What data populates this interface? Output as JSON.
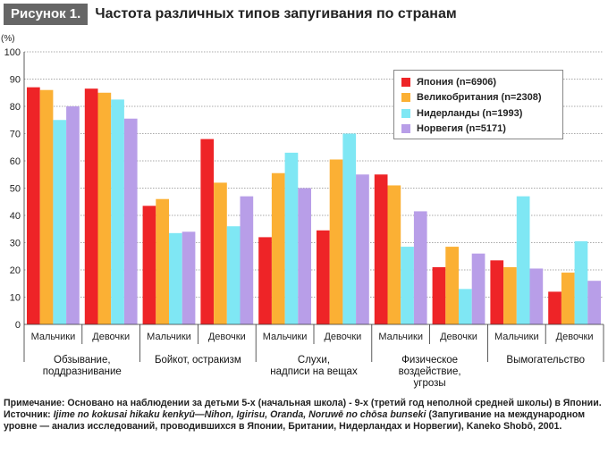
{
  "figure": {
    "label": "Рисунок 1.",
    "title": "Частота различных типов запугивания по странам"
  },
  "chart_data": {
    "type": "bar",
    "unit_label": "(%)",
    "ylim": [
      0,
      100
    ],
    "yticks": [
      0,
      10,
      20,
      30,
      40,
      50,
      60,
      70,
      80,
      90,
      100
    ],
    "grid": true,
    "legend_position": "top-right",
    "groups": [
      {
        "label": "Обзывание, поддразнивание",
        "label_lines": [
          "Обзывание,",
          "поддразнивание"
        ]
      },
      {
        "label": "Бойкот, остракизм",
        "label_lines": [
          "Бойкот, остракизм"
        ]
      },
      {
        "label": "Слухи, надписи на вещах",
        "label_lines": [
          "Слухи,",
          "надписи на вещах"
        ]
      },
      {
        "label": "Физическое воздействие, угрозы",
        "label_lines": [
          "Физическое",
          "воздействие,",
          "угрозы"
        ]
      },
      {
        "label": "Вымогательство",
        "label_lines": [
          "Вымогательство"
        ]
      }
    ],
    "subcategories": [
      "Мальчики",
      "Девочки"
    ],
    "categories": [
      "Мальчики",
      "Девочки",
      "Мальчики",
      "Девочки",
      "Мальчики",
      "Девочки",
      "Мальчики",
      "Девочки",
      "Мальчики",
      "Девочки"
    ],
    "series": [
      {
        "name": "Япония (n=6906)",
        "color": "#ee2427",
        "values": [
          87,
          86.5,
          43.5,
          68,
          32,
          34.5,
          55,
          21,
          23.5,
          12
        ]
      },
      {
        "name": "Великобритания (n=2308)",
        "color": "#fbb034",
        "values": [
          86,
          85,
          46,
          52,
          55.5,
          60.5,
          51,
          28.5,
          21,
          19
        ]
      },
      {
        "name": "Нидерланды (n=1993)",
        "color": "#7fe7f4",
        "values": [
          75,
          82.5,
          33.5,
          36,
          63,
          70,
          28.5,
          13,
          47,
          30.5
        ]
      },
      {
        "name": "Норвегия (n=5171)",
        "color": "#b89ee8",
        "values": [
          80,
          75.5,
          34,
          47,
          50,
          55,
          41.5,
          26,
          20.5,
          16
        ]
      }
    ]
  },
  "notes": {
    "note_prefix": "Примечание: ",
    "note_text": "Основано на наблюдении за детьми 5-х (начальная школа) - 9-х (третий год неполной средней школы) в Японии.",
    "source_prefix": "Источник: ",
    "source_title": "Ijime no kokusai hikaku kenkyū—Nihon, Igirisu, Oranda, Noruwē no chōsa bunseki",
    "source_rest": " (Запугивание на международном уровне — анализ исследований, проводившихся в Японии, Британии, Нидерландах и Норвегии), Kaneko Shobō, 2001."
  }
}
